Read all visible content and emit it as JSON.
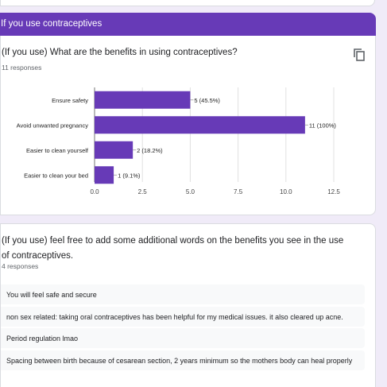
{
  "section": {
    "title": "If you use contraceptives"
  },
  "question1": {
    "title": "(If you use) What are the benefits in using contraceptives?",
    "responses": "11 responses",
    "copy_icon": "copy-icon"
  },
  "chart_data": {
    "type": "bar",
    "orientation": "horizontal",
    "categories": [
      "Ensure safety",
      "Avoid unwanted pregnancy",
      "Easier to clean yourself",
      "Easier to clean your bed"
    ],
    "values": [
      5,
      11,
      2,
      1
    ],
    "data_labels": [
      "5 (45.5%)",
      "11 (100%)",
      "2 (18.2%)",
      "1 (9.1%)"
    ],
    "xticks": [
      "0.0",
      "2.5",
      "5.0",
      "7.5",
      "10.0",
      "12.5"
    ],
    "xlim": [
      0,
      12.5
    ],
    "grid": true,
    "bar_color": "#673ab7"
  },
  "question2": {
    "title": "(If you use) feel free to add some additional words on the benefits you see in the use of contraceptives.",
    "responses": "4 responses",
    "answers": [
      "You will feel safe and secure",
      "non sex related: taking oral contraceptives has been helpful for my medical issues. it also cleared up acne.",
      "Period regulation lmao",
      "Spacing between birth because of cesarean section, 2 years minimum so the mothers body can heal properly"
    ]
  }
}
